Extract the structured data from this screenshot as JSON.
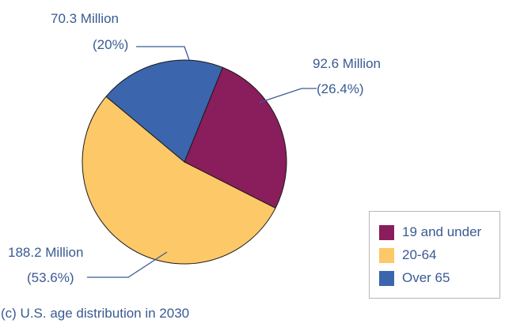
{
  "chart_data": {
    "type": "pie",
    "categories": [
      "19 and under",
      "20-64",
      "Over 65"
    ],
    "values": [
      92.6,
      188.2,
      70.3
    ],
    "value_labels": [
      "92.6 Million",
      "188.2 Million",
      "70.3 Million"
    ],
    "percent_labels": [
      "(26.4%)",
      "(53.6%)",
      "(20%)"
    ],
    "colors": [
      "#8a1d5c",
      "#fdc868",
      "#3b65ad"
    ],
    "caption": "(c) U.S. age distribution in 2030",
    "legend_position": "bottom-right",
    "start_angle_deg": 22,
    "direction": "clockwise"
  }
}
